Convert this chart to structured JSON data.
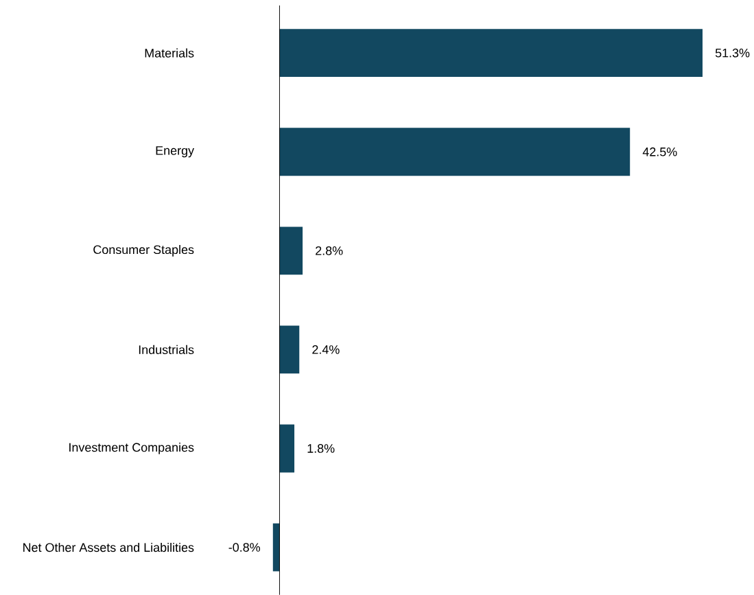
{
  "chart_data": {
    "type": "bar",
    "orientation": "horizontal",
    "categories": [
      "Materials",
      "Energy",
      "Consumer Staples",
      "Industrials",
      "Investment Companies",
      "Net Other Assets and Liabilities"
    ],
    "values": [
      51.3,
      42.5,
      2.8,
      2.4,
      1.8,
      -0.8
    ],
    "value_labels": [
      "51.3%",
      "42.5%",
      "2.8%",
      "2.4%",
      "1.8%",
      "-0.8%"
    ],
    "color": "#124860"
  }
}
